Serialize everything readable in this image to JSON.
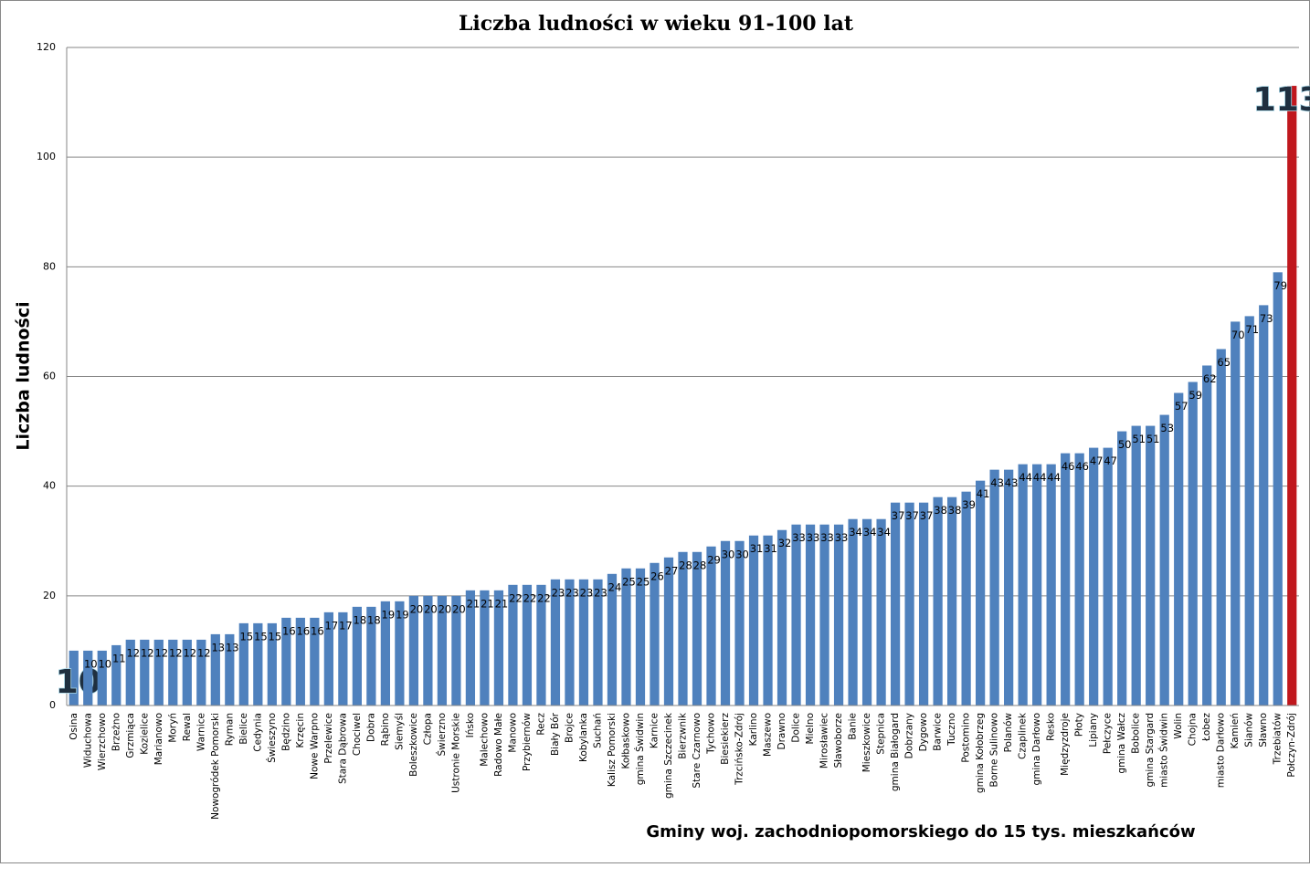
{
  "chart_data": {
    "type": "bar",
    "title": "Liczba ludności w wieku 91-100 lat",
    "y_label": "Liczba ludności",
    "x_label": "Gminy woj. zachodniopomorskiego do 15 tys. mieszkańców",
    "categories": [
      "Osina",
      "Widuchowa",
      "Wierzchowo",
      "Brzeżno",
      "Grzmiąca",
      "Kozielice",
      "Marianowo",
      "Moryń",
      "Rewal",
      "Warnice",
      "Nowogródek Pomorski",
      "Ryman",
      "Bielice",
      "Cedynia",
      "Świeszyno",
      "Będzino",
      "Krzęcin",
      "Nowe Warpno",
      "Przelewice",
      "Stara Dąbrowa",
      "Chociwel",
      "Dobra",
      "Rąbino",
      "Siemyśl",
      "Boleszkowice",
      "Człopa",
      "Świerzno",
      "Ustronie Morskie",
      "Ińsko",
      "Malechowo",
      "Radowo Małe",
      "Manowo",
      "Przybiernów",
      "Recz",
      "Biały Bór",
      "Brojce",
      "Kobylanka",
      "Suchań",
      "Kalisz Pomorski",
      "Kołbaskowo",
      "gmina Świdwin",
      "Karnice",
      "gmina Szczecinek",
      "Bierzwnik",
      "Stare Czarnowo",
      "Tychowo",
      "Biesiekierz",
      "Trzcińsko-Zdrój",
      "Karlino",
      "Maszewo",
      "Drawno",
      "Dolice",
      "Mielno",
      "Mirosławiec",
      "Sławoborze",
      "Banie",
      "Mieszkowice",
      "Stepnica",
      "gmina Białogard",
      "Dobrzany",
      "Dygowo",
      "Barwice",
      "Tuczno",
      "Postomino",
      "gmina Kołobrzeg",
      "Borne Sulinowo",
      "Polanów",
      "Czaplinek",
      "gmina Darłowo",
      "Resko",
      "Międzyzdroje",
      "Płoty",
      "Lipiany",
      "Pełczyce",
      "gmina Wałcz",
      "Bobolice",
      "gmina Stargard",
      "miasto Świdwin",
      "Wolin",
      "Chojna",
      "Łobez",
      "miasto Darłowo",
      "Kamień",
      "Sianów",
      "Sławno",
      "Trzebiatów",
      "Połczyn-Zdrój"
    ],
    "values": [
      10,
      10,
      10,
      11,
      12,
      12,
      12,
      12,
      12,
      12,
      13,
      13,
      15,
      15,
      15,
      16,
      16,
      16,
      17,
      17,
      18,
      18,
      19,
      19,
      20,
      20,
      20,
      20,
      21,
      21,
      21,
      22,
      22,
      22,
      23,
      23,
      23,
      23,
      24,
      25,
      25,
      26,
      27,
      28,
      28,
      29,
      30,
      30,
      31,
      31,
      32,
      33,
      33,
      33,
      33,
      34,
      34,
      34,
      37,
      37,
      37,
      38,
      38,
      39,
      41,
      43,
      43,
      44,
      44,
      44,
      46,
      46,
      47,
      47,
      50,
      51,
      51,
      53,
      57,
      59,
      62,
      65,
      70,
      71,
      73,
      79,
      113
    ],
    "colors": [
      "#4f81bd",
      "#4f81bd",
      "#4f81bd",
      "#4f81bd",
      "#4f81bd",
      "#4f81bd",
      "#4f81bd",
      "#4f81bd",
      "#4f81bd",
      "#4f81bd",
      "#4f81bd",
      "#4f81bd",
      "#4f81bd",
      "#4f81bd",
      "#4f81bd",
      "#4f81bd",
      "#4f81bd",
      "#4f81bd",
      "#4f81bd",
      "#4f81bd",
      "#4f81bd",
      "#4f81bd",
      "#4f81bd",
      "#4f81bd",
      "#4f81bd",
      "#4f81bd",
      "#4f81bd",
      "#4f81bd",
      "#4f81bd",
      "#4f81bd",
      "#4f81bd",
      "#4f81bd",
      "#4f81bd",
      "#4f81bd",
      "#4f81bd",
      "#4f81bd",
      "#4f81bd",
      "#4f81bd",
      "#4f81bd",
      "#4f81bd",
      "#4f81bd",
      "#4f81bd",
      "#4f81bd",
      "#4f81bd",
      "#4f81bd",
      "#4f81bd",
      "#4f81bd",
      "#4f81bd",
      "#4f81bd",
      "#4f81bd",
      "#4f81bd",
      "#4f81bd",
      "#4f81bd",
      "#4f81bd",
      "#4f81bd",
      "#4f81bd",
      "#4f81bd",
      "#4f81bd",
      "#4f81bd",
      "#4f81bd",
      "#4f81bd",
      "#4f81bd",
      "#4f81bd",
      "#4f81bd",
      "#4f81bd",
      "#4f81bd",
      "#4f81bd",
      "#4f81bd",
      "#4f81bd",
      "#4f81bd",
      "#4f81bd",
      "#4f81bd",
      "#4f81bd",
      "#4f81bd",
      "#4f81bd",
      "#4f81bd",
      "#4f81bd",
      "#4f81bd",
      "#4f81bd",
      "#4f81bd",
      "#4f81bd",
      "#4f81bd",
      "#4f81bd",
      "#4f81bd",
      "#4f81bd",
      "#4f81bd",
      "#c0171d"
    ],
    "ylim": [
      0,
      120
    ],
    "yticks": [
      0,
      20,
      40,
      60,
      80,
      100,
      120
    ],
    "grid": true
  }
}
